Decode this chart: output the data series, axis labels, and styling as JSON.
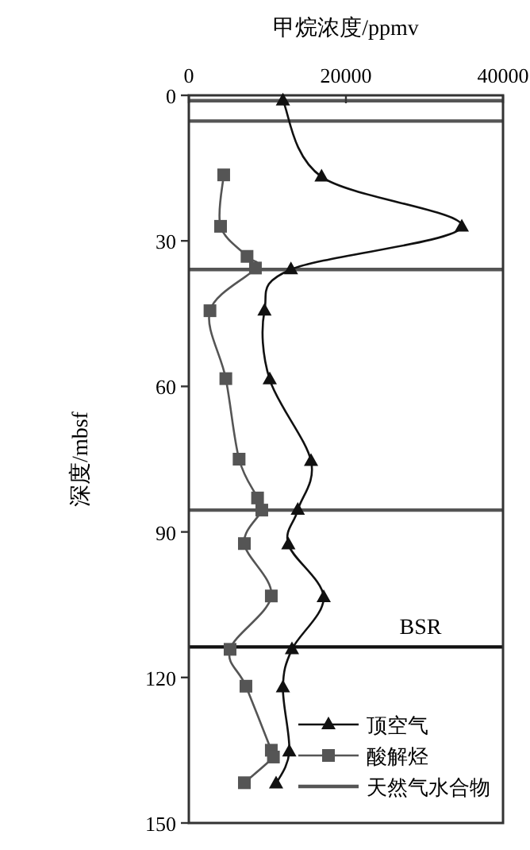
{
  "chart_data": {
    "type": "line",
    "title": "甲烷浓度/ppmv",
    "ylabel": "深度/mbsf",
    "xlim": [
      0,
      40000
    ],
    "xticks": [
      0,
      20000,
      40000
    ],
    "ylim": [
      150,
      0
    ],
    "yticks": [
      0,
      30,
      60,
      90,
      120,
      150
    ],
    "grid": false,
    "legend": "bottom right",
    "line_style": "solid",
    "tick_labels": true,
    "series": [
      {
        "name": "顶空气",
        "color": "#111111",
        "marker": "triangle",
        "x": [
          11980,
          16900,
          34750,
          13000,
          9630,
          10300,
          15560,
          13870,
          12670,
          17170,
          13130,
          11980,
          12790,
          11110
        ],
        "values": [
          1.1,
          16.8,
          27.1,
          35.9,
          44.4,
          58.6,
          75.4,
          85.5,
          92.6,
          103.5,
          114.2,
          122.1,
          135.3,
          141.9
        ]
      },
      {
        "name": "酸解烃",
        "color": "#555555",
        "marker": "square",
        "x": [
          4440,
          4040,
          7410,
          8480,
          2690,
          4710,
          6400,
          8750,
          9290,
          7070,
          10500,
          5250,
          7270,
          10500,
          10770,
          7070
        ],
        "values": [
          16.4,
          27.0,
          33.2,
          35.6,
          44.4,
          58.4,
          75.0,
          83.0,
          85.5,
          92.4,
          103.2,
          114.2,
          121.8,
          135.0,
          136.4,
          141.7
        ]
      }
    ],
    "ref_lines": [
      {
        "axis": "y",
        "value": 1.1,
        "label": null,
        "color": "#555555"
      },
      {
        "axis": "y",
        "value": 5.3,
        "label": null,
        "color": "#555555"
      },
      {
        "axis": "y",
        "value": 35.9,
        "label": null,
        "color": "#555555"
      },
      {
        "axis": "y",
        "value": 85.5,
        "label": null,
        "color": "#555555"
      },
      {
        "axis": "y",
        "value": 113.7,
        "label": "BSR",
        "color": "#111111"
      }
    ],
    "annotations": [
      "天然气水合物"
    ]
  }
}
